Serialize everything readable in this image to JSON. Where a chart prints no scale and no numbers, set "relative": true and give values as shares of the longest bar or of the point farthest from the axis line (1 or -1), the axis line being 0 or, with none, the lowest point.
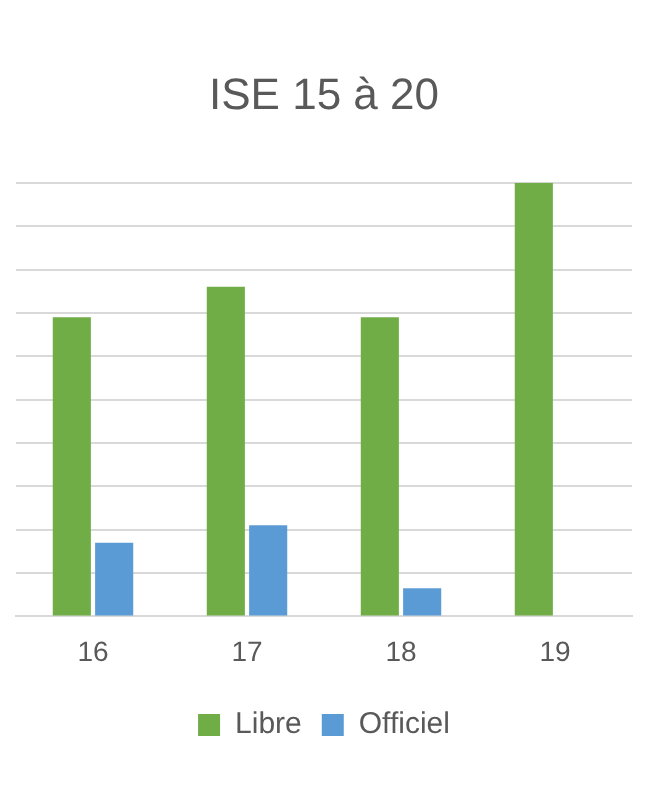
{
  "chart_data": {
    "type": "bar",
    "title": "ISE 15 à 20",
    "categories": [
      "16",
      "17",
      "18",
      "19"
    ],
    "relative": true,
    "grid": "y",
    "legend": "bottom",
    "series": [
      {
        "name": "Libre",
        "color": "#70ad47",
        "values": [
          0.69,
          0.76,
          0.69,
          1
        ]
      },
      {
        "name": "Officiel",
        "color": "#5b9bd5",
        "values": [
          0.17,
          0.21,
          0.065,
          null
        ]
      }
    ]
  }
}
